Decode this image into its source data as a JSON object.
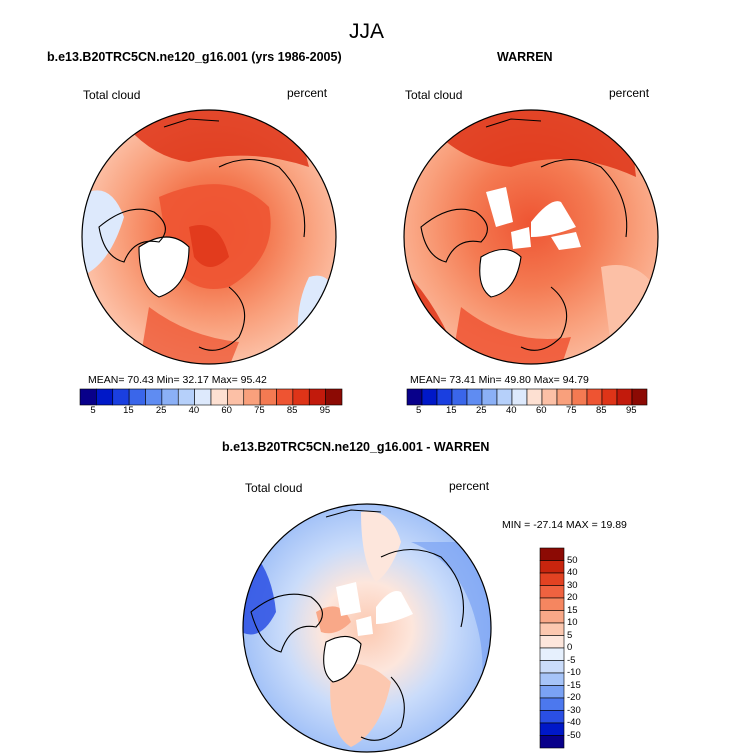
{
  "title": "JJA",
  "colors": {
    "scale": [
      "#08008a",
      "#0018c8",
      "#1a3fe0",
      "#3a66ea",
      "#5f8cf2",
      "#8bb0f6",
      "#b6d0fa",
      "#dde9fc",
      "#fde0d2",
      "#fcc0a6",
      "#f9a07c",
      "#f47a52",
      "#ee5432",
      "#de3418",
      "#c21a0c",
      "#8c0a04"
    ],
    "diff": [
      "#08008a",
      "#0018c8",
      "#2a4fe4",
      "#4c78ee",
      "#7aa2f4",
      "#a6c4f8",
      "#cadcfa",
      "#e6f0fd",
      "#fde6dc",
      "#fcc8b0",
      "#f9a888",
      "#f58660",
      "#ef6240",
      "#e24222",
      "#c8250e",
      "#8c0a04"
    ]
  },
  "panels": {
    "left": {
      "title": "b.e13.B20TRC5CN.ne120_g16.001 (yrs 1986-2005)",
      "variable": "Total cloud",
      "units": "percent",
      "stats": "MEAN=  70.43   Min=  32.17   Max=  95.42",
      "ticks": [
        "5",
        "15",
        "25",
        "40",
        "60",
        "75",
        "85",
        "95"
      ]
    },
    "right": {
      "title": "WARREN",
      "variable": "Total cloud",
      "units": "percent",
      "stats": "MEAN=  73.41   Min=  49.80   Max=  94.79",
      "ticks": [
        "5",
        "15",
        "25",
        "40",
        "60",
        "75",
        "85",
        "95"
      ]
    },
    "diff": {
      "title": "b.e13.B20TRC5CN.ne120_g16.001 - WARREN",
      "variable": "Total cloud",
      "units": "percent",
      "stats": "MIN = -27.14 MAX =  19.89",
      "ticks": [
        "50",
        "40",
        "30",
        "20",
        "15",
        "10",
        "5",
        "0",
        "-5",
        "-10",
        "-15",
        "-20",
        "-30",
        "-40",
        "-50"
      ]
    }
  }
}
